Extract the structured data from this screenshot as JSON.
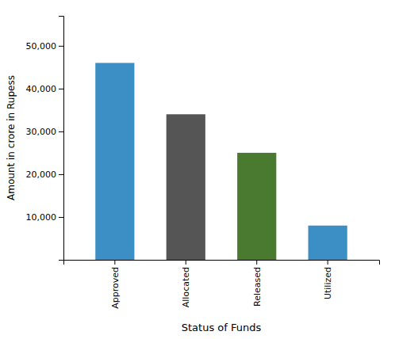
{
  "chart_data": {
    "type": "bar",
    "categories": [
      "Approved",
      "Allocated",
      "Released",
      "Utilized"
    ],
    "values": [
      46000,
      34000,
      25000,
      8000
    ],
    "colors": [
      "#3B8FC4",
      "#555555",
      "#4A7A30",
      "#3B8FC4"
    ],
    "xlabel": "Status of Funds",
    "ylabel": "Amount in crore in Rupess",
    "ylim": [
      0,
      57000
    ],
    "yticks": [
      {
        "value": 10000,
        "label": "10,000"
      },
      {
        "value": 20000,
        "label": "20,000"
      },
      {
        "value": 30000,
        "label": "30,000"
      },
      {
        "value": 40000,
        "label": "40,000"
      },
      {
        "value": 50000,
        "label": "50,000"
      }
    ],
    "grid": false
  }
}
